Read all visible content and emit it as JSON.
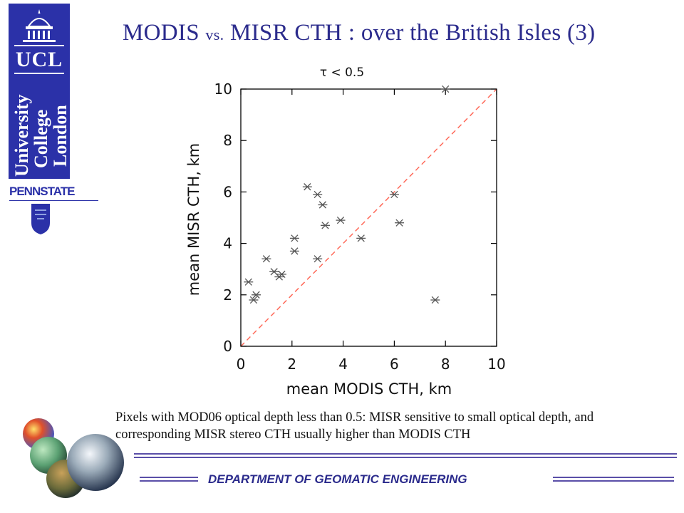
{
  "slide": {
    "title_main_1": "MODIS",
    "title_small": "vs.",
    "title_main_2": "MISR CTH : over the British Isles (3)",
    "caption": "Pixels with MOD06 optical depth less than 0.5: MISR sensitive to small optical depth, and corresponding MISR stereo CTH usually higher than MODIS CTH",
    "department": "DEPARTMENT  OF  GEOMATIC  ENGINEERING"
  },
  "logos": {
    "ucl_abbr": "UCL",
    "ucl_words": [
      "University",
      "College",
      "London"
    ],
    "pennstate": "PENNSTATE",
    "banner_color": "#2b31a8"
  },
  "chart_data": {
    "type": "scatter",
    "title": "τ < 0.5",
    "xlabel": "mean MODIS CTH, km",
    "ylabel": "mean MISR CTH, km",
    "xlim": [
      0,
      10
    ],
    "ylim": [
      0,
      10
    ],
    "xticks": [
      "0",
      "2",
      "4",
      "6",
      "8",
      "10"
    ],
    "yticks": [
      "0",
      "2",
      "4",
      "6",
      "8",
      "10"
    ],
    "grid": false,
    "reference_line": {
      "type": "1:1",
      "style": "dashed",
      "color": "#ff6a5a"
    },
    "marker": {
      "shape": "asterisk",
      "color": "#555555"
    },
    "points": [
      {
        "x": 0.3,
        "y": 2.5
      },
      {
        "x": 0.5,
        "y": 1.8
      },
      {
        "x": 0.6,
        "y": 2.0
      },
      {
        "x": 1.0,
        "y": 3.4
      },
      {
        "x": 1.3,
        "y": 2.9
      },
      {
        "x": 1.5,
        "y": 2.7
      },
      {
        "x": 1.6,
        "y": 2.8
      },
      {
        "x": 2.1,
        "y": 4.2
      },
      {
        "x": 2.1,
        "y": 3.7
      },
      {
        "x": 2.6,
        "y": 6.2
      },
      {
        "x": 3.0,
        "y": 5.9
      },
      {
        "x": 3.2,
        "y": 5.5
      },
      {
        "x": 3.3,
        "y": 4.7
      },
      {
        "x": 3.0,
        "y": 3.4
      },
      {
        "x": 3.9,
        "y": 4.9
      },
      {
        "x": 4.7,
        "y": 4.2
      },
      {
        "x": 6.0,
        "y": 5.9
      },
      {
        "x": 6.2,
        "y": 4.8
      },
      {
        "x": 7.6,
        "y": 1.8
      },
      {
        "x": 8.0,
        "y": 10.0
      }
    ]
  }
}
